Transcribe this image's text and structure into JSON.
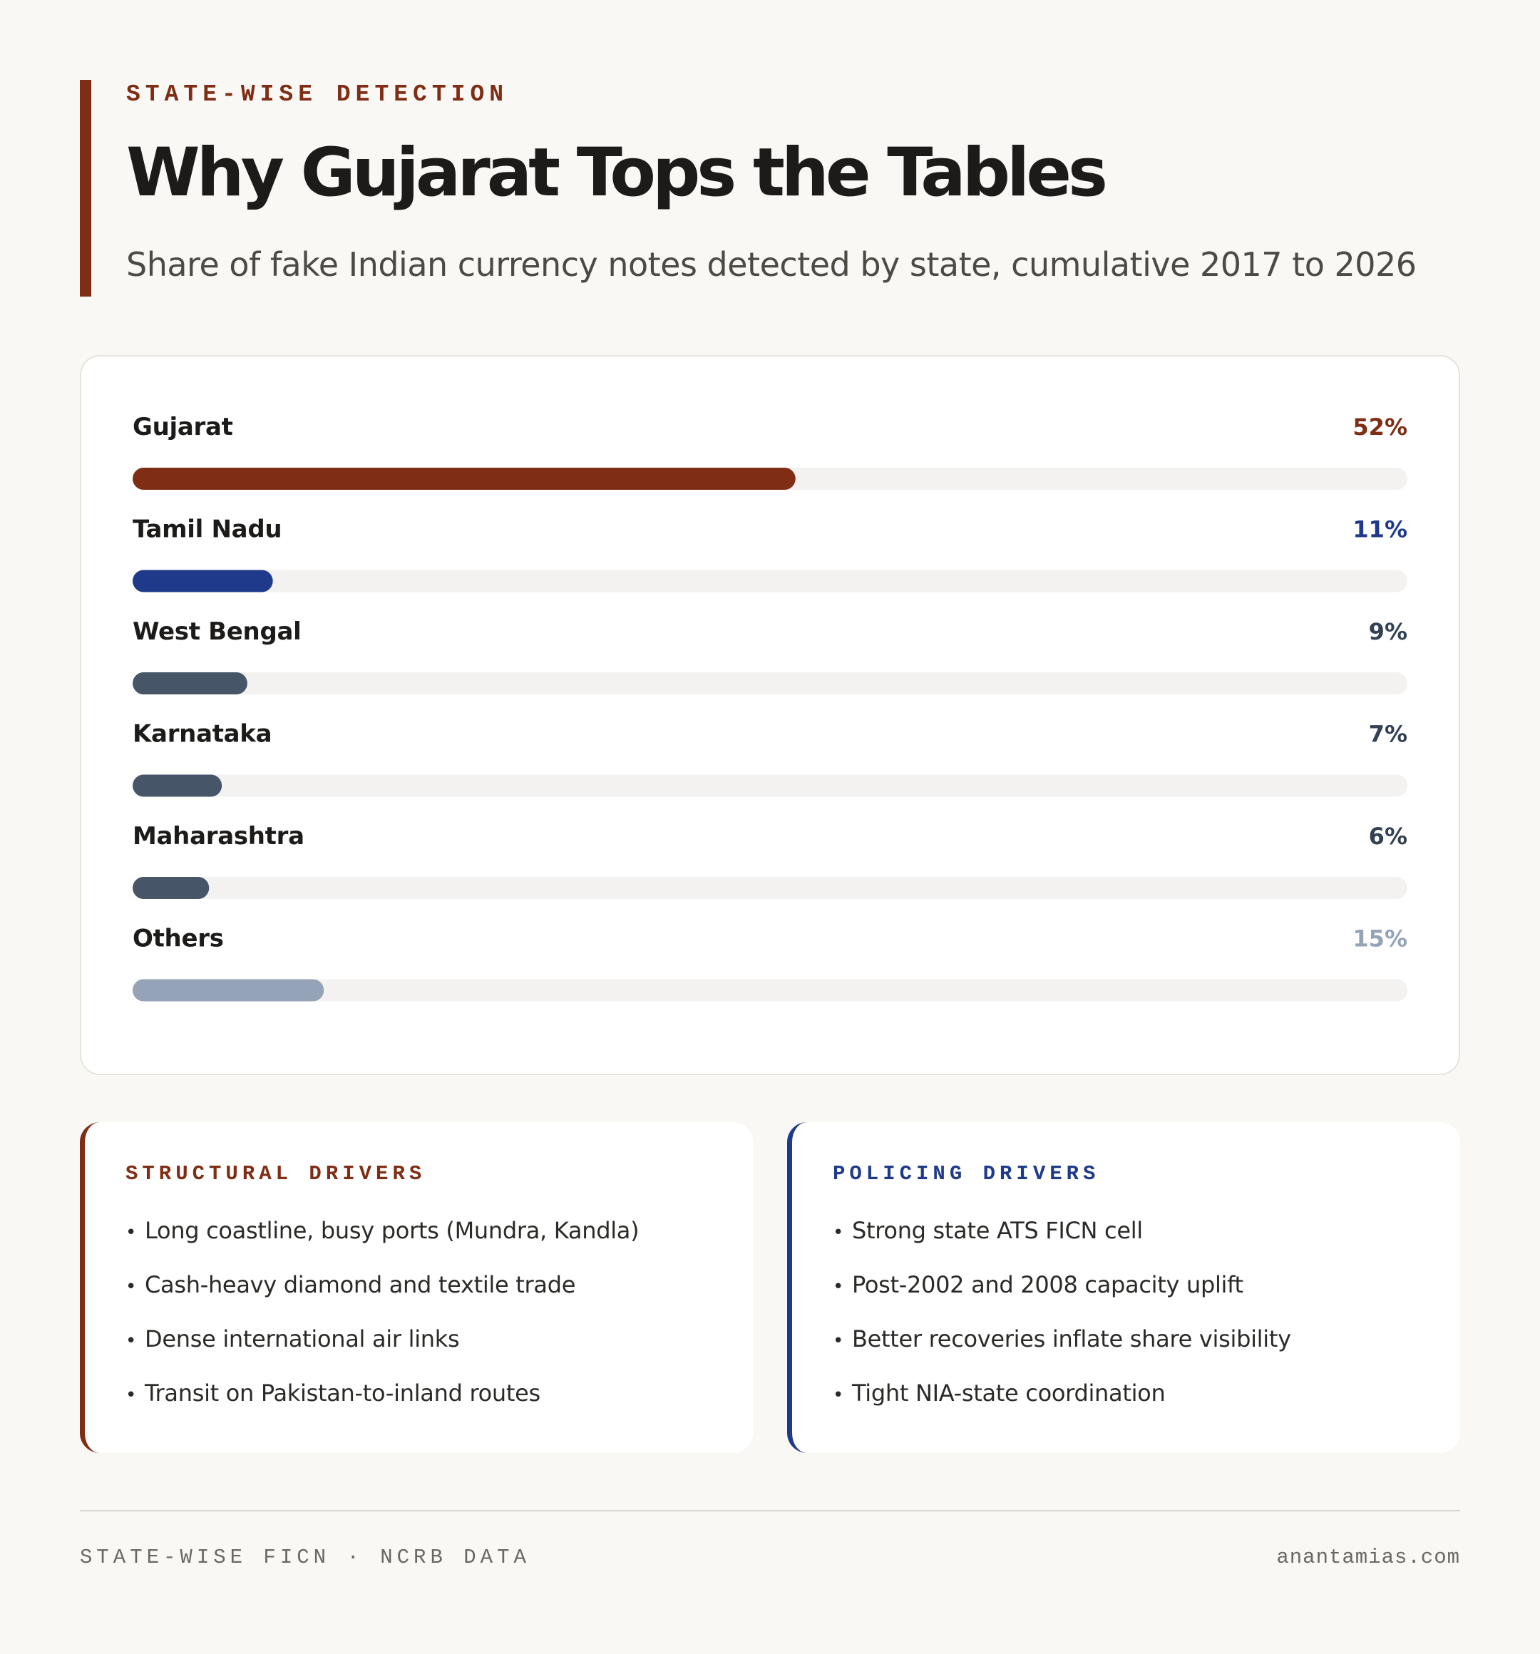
{
  "header": {
    "eyebrow": "STATE-WISE DETECTION",
    "title": "Why Gujarat Tops the Tables",
    "subtitle": "Share of fake Indian currency notes detected by state, cumulative 2017 to 2026"
  },
  "colors": {
    "accent_red": "#7f2d14",
    "accent_blue": "#1f3a8a",
    "slate": "#475569",
    "light_slate": "#94a3b8",
    "track": "#f3f2f0"
  },
  "chart_data": {
    "type": "bar",
    "orientation": "horizontal",
    "unit": "%",
    "xlim": [
      0,
      100
    ],
    "categories": [
      "Gujarat",
      "Tamil Nadu",
      "West Bengal",
      "Karnataka",
      "Maharashtra",
      "Others"
    ],
    "values": [
      52,
      11,
      9,
      7,
      6,
      15
    ],
    "value_labels": [
      "52%",
      "11%",
      "9%",
      "7%",
      "6%",
      "15%"
    ],
    "bar_colors": [
      "#7f2d14",
      "#1f3a8a",
      "#475569",
      "#475569",
      "#475569",
      "#94a3b8"
    ],
    "label_colors": [
      "#7f2d14",
      "#1f3a8a",
      "#334155",
      "#334155",
      "#334155",
      "#94a3b8"
    ]
  },
  "panels": {
    "structural": {
      "title": "STRUCTURAL DRIVERS",
      "items": [
        "Long coastline, busy ports (Mundra, Kandla)",
        "Cash-heavy diamond and textile trade",
        "Dense international air links",
        "Transit on Pakistan-to-inland routes"
      ]
    },
    "policing": {
      "title": "POLICING DRIVERS",
      "items": [
        "Strong state ATS FICN cell",
        "Post-2002 and 2008 capacity uplift",
        "Better recoveries inflate share visibility",
        "Tight NIA-state coordination"
      ]
    }
  },
  "footer": {
    "left": "STATE-WISE FICN · NCRB DATA",
    "right": "anantamias.com"
  }
}
